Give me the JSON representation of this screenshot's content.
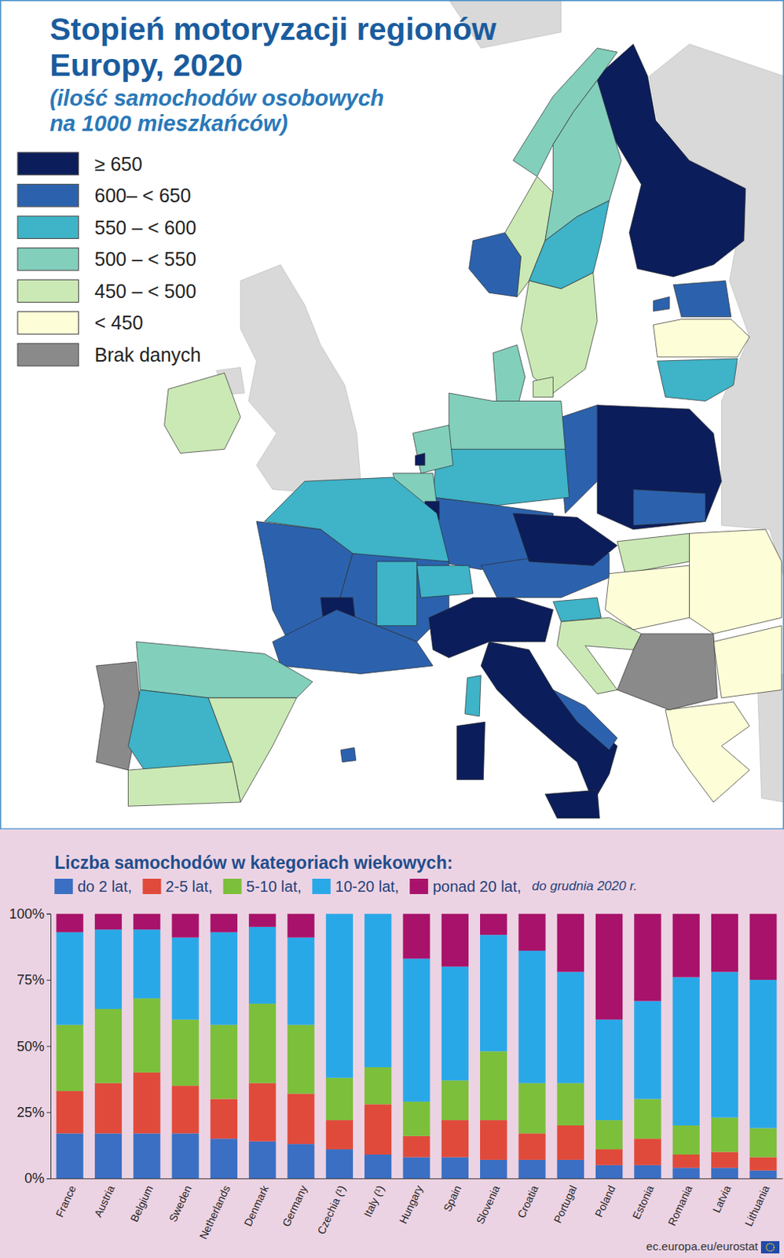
{
  "map": {
    "type": "choropleth",
    "title": [
      "Stopień motoryzacji regionów",
      "Europy, 2020"
    ],
    "subtitle": [
      "(ilość samochodów osobowych",
      "na 1000 mieszkańców)"
    ],
    "legend": [
      {
        "label": "≥ 650",
        "color": "#0b1d5a"
      },
      {
        "label": "600– < 650",
        "color": "#2c62ad"
      },
      {
        "label": "550 – < 600",
        "color": "#3fb3c7"
      },
      {
        "label": "500 – < 550",
        "color": "#82cfbc"
      },
      {
        "label": "450 – < 500",
        "color": "#cbe9b5"
      },
      {
        "label": "< 450",
        "color": "#fdfdd8"
      },
      {
        "label": "Brak danych",
        "color": "#8a8a8a"
      }
    ],
    "regions": [
      0,
      3,
      1,
      4,
      3,
      2,
      4,
      1,
      1,
      5,
      2,
      3,
      4,
      0,
      1,
      1,
      3,
      2,
      1,
      3,
      0,
      3,
      0,
      2,
      1,
      1,
      2,
      0,
      1,
      2,
      2,
      0,
      0,
      1,
      0,
      0,
      1,
      0,
      4,
      5,
      2,
      4,
      5,
      5,
      5,
      6,
      6,
      3,
      2,
      4,
      4,
      1,
      4
    ]
  },
  "chart_data": {
    "type": "bar",
    "stacked": true,
    "title": "Liczba samochodów w kategoriach wiekowych:",
    "annotation": "do grudnia 2020 r.",
    "categories": [
      "France",
      "Austria",
      "Belgium",
      "Sweden",
      "Netherlands",
      "Denmark",
      "Germany",
      "Czechia (¹)",
      "Italy (¹)",
      "Hungary",
      "Spain",
      "Slovenia",
      "Croatia",
      "Portugal",
      "Poland",
      "Estonia",
      "Romania",
      "Latvia",
      "Lithuania"
    ],
    "series": [
      {
        "name": "do 2 lat,",
        "color": "#3a6fc4",
        "values": [
          17,
          17,
          17,
          17,
          15,
          14,
          13,
          11,
          9,
          8,
          8,
          7,
          7,
          7,
          5,
          5,
          4,
          4,
          3
        ]
      },
      {
        "name": "2-5 lat,",
        "color": "#e04a3a",
        "values": [
          16,
          19,
          23,
          18,
          15,
          22,
          19,
          11,
          19,
          8,
          14,
          15,
          10,
          13,
          6,
          10,
          5,
          6,
          5
        ]
      },
      {
        "name": "5-10 lat,",
        "color": "#7cbf3a",
        "values": [
          25,
          28,
          28,
          25,
          28,
          30,
          26,
          16,
          14,
          13,
          15,
          26,
          19,
          16,
          11,
          15,
          11,
          13,
          11
        ]
      },
      {
        "name": "10-20 lat,",
        "color": "#29a8e8",
        "values": [
          35,
          30,
          26,
          31,
          35,
          29,
          33,
          62,
          58,
          54,
          43,
          44,
          50,
          42,
          38,
          37,
          56,
          55,
          56
        ]
      },
      {
        "name": "ponad 20 lat,",
        "color": "#a8126a",
        "values": [
          7,
          6,
          6,
          9,
          7,
          5,
          9,
          0,
          0,
          17,
          20,
          8,
          14,
          22,
          40,
          33,
          24,
          22,
          25
        ]
      }
    ],
    "ylim": [
      0,
      100
    ],
    "yticks": [
      {
        "value": 0,
        "label": "0%"
      },
      {
        "value": 25,
        "label": "25%"
      },
      {
        "value": 50,
        "label": "50%"
      },
      {
        "value": 75,
        "label": "75%"
      },
      {
        "value": 100,
        "label": "100%"
      }
    ],
    "grid": false,
    "legend": "top"
  },
  "source": "ec.europa.eu/eurostat"
}
